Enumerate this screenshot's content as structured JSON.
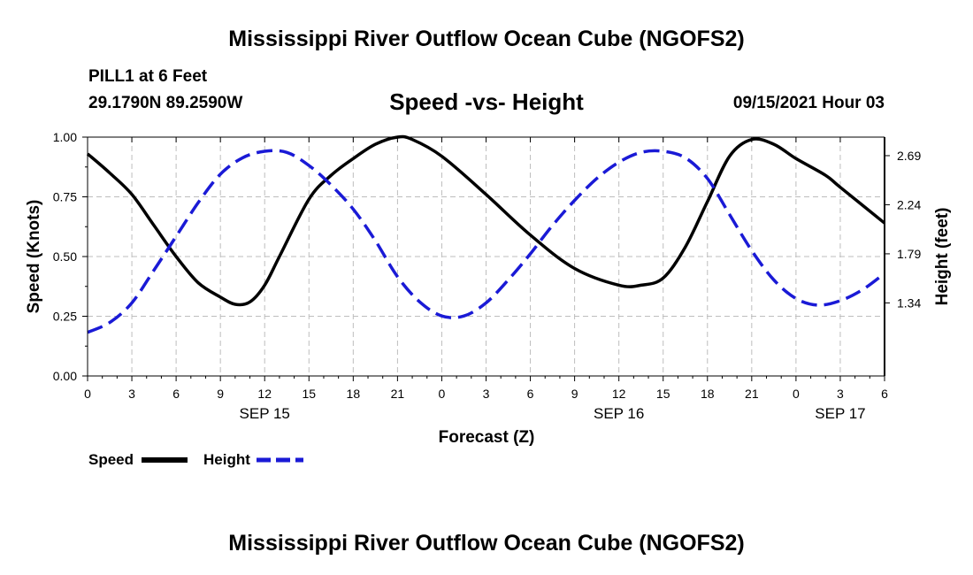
{
  "header": {
    "title_top": "Mississippi River Outflow Ocean Cube (NGOFS2)",
    "station": "PILL1 at 6 Feet",
    "coords": "29.1790N  89.2590W",
    "subtitle": "Speed -vs- Height",
    "datetime": "09/15/2021 Hour 03"
  },
  "footer": {
    "title_bottom": "Mississippi River Outflow Ocean Cube (NGOFS2)"
  },
  "legend": {
    "speed_label": "Speed",
    "height_label": "Height"
  },
  "colors": {
    "speed": "#000000",
    "height": "#1a1ad6",
    "grid": "#bdbdbd"
  },
  "chart_data": {
    "type": "line",
    "title": "Speed -vs- Height",
    "xlabel": "Forecast (Z)",
    "ylabel": "Speed (Knots)",
    "ylabel_right": "Height (feet)",
    "grid": true,
    "legend_position": "bottom-left",
    "xlim": [
      0,
      54
    ],
    "ylim": [
      0,
      1
    ],
    "ylim_right": [
      0.67,
      2.86
    ],
    "x_ticks": [
      0,
      3,
      6,
      9,
      12,
      15,
      18,
      21,
      24,
      27,
      30,
      33,
      36,
      39,
      42,
      45,
      48,
      51,
      54
    ],
    "x_tick_labels": [
      "0",
      "3",
      "6",
      "9",
      "12",
      "15",
      "18",
      "21",
      "0",
      "3",
      "6",
      "9",
      "12",
      "15",
      "18",
      "21",
      "0",
      "3",
      "6"
    ],
    "y_ticks": [
      0,
      0.25,
      0.5,
      0.75,
      1.0
    ],
    "y_tick_labels": [
      "0.00",
      "0.25",
      "0.50",
      "0.75",
      "1.00"
    ],
    "y_ticks_right": [
      1.34,
      1.79,
      2.24,
      2.69
    ],
    "y_tick_labels_right": [
      "1.34",
      "1.79",
      "2.24",
      "2.69"
    ],
    "day_labels": [
      {
        "x": 12,
        "label": "SEP 15"
      },
      {
        "x": 36,
        "label": "SEP 16"
      },
      {
        "x": 51,
        "label": "SEP 17"
      }
    ],
    "series": [
      {
        "name": "Speed",
        "axis": "left",
        "style": "solid",
        "x": [
          0,
          1.5,
          3,
          4.5,
          6,
          7.5,
          9,
          10,
          11,
          12,
          13,
          15,
          16.5,
          18,
          19.5,
          21,
          22,
          24,
          27,
          30,
          33,
          36,
          37.5,
          39,
          40.5,
          42,
          43.5,
          45,
          46.5,
          48,
          50,
          51,
          54
        ],
        "values": [
          0.93,
          0.85,
          0.76,
          0.63,
          0.5,
          0.39,
          0.33,
          0.3,
          0.31,
          0.38,
          0.5,
          0.74,
          0.84,
          0.91,
          0.97,
          1.0,
          0.99,
          0.92,
          0.76,
          0.59,
          0.45,
          0.38,
          0.38,
          0.41,
          0.54,
          0.73,
          0.92,
          0.99,
          0.97,
          0.91,
          0.84,
          0.79,
          0.64
        ]
      },
      {
        "name": "Height",
        "axis": "right",
        "style": "dashed",
        "x": [
          0,
          1.5,
          3,
          4.5,
          6,
          7.5,
          9,
          10.5,
          12,
          13.5,
          15,
          16.5,
          18,
          19.5,
          21,
          22.5,
          24,
          25.5,
          27,
          28.5,
          30,
          31.5,
          33,
          34.5,
          36,
          37.5,
          39,
          40.5,
          42,
          43.5,
          45,
          46.5,
          48,
          49.5,
          51,
          52.5,
          54
        ],
        "values": [
          1.07,
          1.16,
          1.34,
          1.64,
          1.95,
          2.26,
          2.52,
          2.67,
          2.73,
          2.72,
          2.6,
          2.42,
          2.2,
          1.91,
          1.58,
          1.35,
          1.22,
          1.22,
          1.34,
          1.55,
          1.79,
          2.05,
          2.28,
          2.48,
          2.63,
          2.72,
          2.73,
          2.67,
          2.48,
          2.15,
          1.82,
          1.55,
          1.38,
          1.32,
          1.36,
          1.46,
          1.61
        ]
      }
    ]
  }
}
